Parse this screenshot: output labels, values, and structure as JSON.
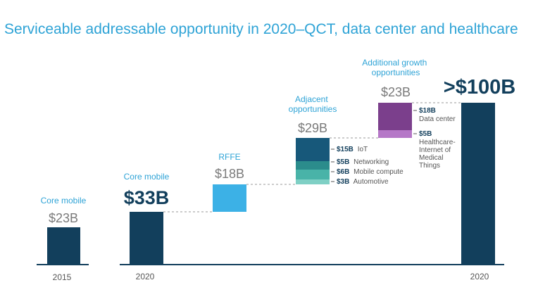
{
  "title": "Serviceable addressable opportunity in 2020–QCT, data center and healthcare",
  "colors": {
    "navy": "#123f5c",
    "light_blue": "#3cb1e6",
    "iot": "#17587a",
    "networking": "#2b8c8c",
    "mobile_compute": "#49b3a8",
    "automotive": "#7fd0c5",
    "data_center": "#7b3f8c",
    "healthcare": "#b577c7",
    "accent_text": "#2ea3d6",
    "gray_text": "#7a7a7a"
  },
  "chart_data": {
    "type": "bar",
    "title": "Serviceable addressable opportunity in 2020–QCT, data center and healthcare",
    "unit": "$B",
    "ylim": [
      0,
      100
    ],
    "bars": [
      {
        "id": "core-2015",
        "category_label": "Core mobile",
        "value_label": "$23B",
        "x_label": "2015",
        "base": 0,
        "value": 23
      },
      {
        "id": "core-2020",
        "category_label": "Core mobile",
        "value_label": "$33B",
        "x_label": "2020",
        "base": 0,
        "value": 33
      },
      {
        "id": "rffe",
        "category_label": "RFFE",
        "value_label": "$18B",
        "x_label": "",
        "base": 33,
        "value": 18
      },
      {
        "id": "adjacent",
        "category_label": "Adjacent opportunities",
        "value_label": "$29B",
        "x_label": "",
        "base": 51,
        "value": 29,
        "segments": [
          {
            "id": "iot",
            "amount": "$15B",
            "name": "IoT",
            "value": 15
          },
          {
            "id": "networking",
            "amount": "$5B",
            "name": "Networking",
            "value": 5
          },
          {
            "id": "mobile-compute",
            "amount": "$6B",
            "name": "Mobile compute",
            "value": 6
          },
          {
            "id": "automotive",
            "amount": "$3B",
            "name": "Automotive",
            "value": 3
          }
        ]
      },
      {
        "id": "additional",
        "category_label": "Additional growth opportunities",
        "value_label": "$23B",
        "x_label": "",
        "base": 80,
        "value": 23,
        "segments": [
          {
            "id": "data-center",
            "amount": "$18B",
            "name": "Data center",
            "value": 18
          },
          {
            "id": "healthcare",
            "amount": "$5B",
            "name": "Healthcare- Internet of Medical Things",
            "value": 5
          }
        ]
      },
      {
        "id": "total",
        "category_label": "",
        "value_label": ">$100B",
        "x_label": "2020",
        "base": 0,
        "value": 103
      }
    ]
  }
}
